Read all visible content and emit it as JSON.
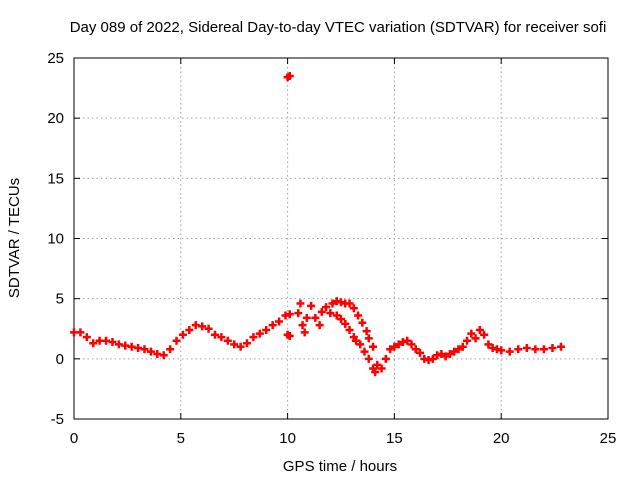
{
  "chart_data": {
    "type": "scatter",
    "title": "Day 089 of 2022, Sidereal Day-to-day VTEC variation (SDTVAR) for receiver sofi",
    "xlabel": "GPS time / hours",
    "ylabel": "SDTVAR / TECUs",
    "xlim": [
      0,
      25
    ],
    "ylim": [
      -5,
      25
    ],
    "xticks": [
      0,
      5,
      10,
      15,
      20,
      25
    ],
    "yticks": [
      -5,
      0,
      5,
      10,
      15,
      20,
      25
    ],
    "grid": true,
    "marker": "plus",
    "series": [
      {
        "name": "SDTVAR",
        "color": "#ff0000",
        "points": [
          [
            0.0,
            2.2
          ],
          [
            0.3,
            2.2
          ],
          [
            0.6,
            1.8
          ],
          [
            0.9,
            1.3
          ],
          [
            1.2,
            1.5
          ],
          [
            1.5,
            1.5
          ],
          [
            1.8,
            1.4
          ],
          [
            2.1,
            1.2
          ],
          [
            2.4,
            1.1
          ],
          [
            2.7,
            1.0
          ],
          [
            3.0,
            0.9
          ],
          [
            3.3,
            0.8
          ],
          [
            3.6,
            0.6
          ],
          [
            3.9,
            0.4
          ],
          [
            4.2,
            0.3
          ],
          [
            4.5,
            0.8
          ],
          [
            4.8,
            1.5
          ],
          [
            5.1,
            2.0
          ],
          [
            5.4,
            2.4
          ],
          [
            5.7,
            2.8
          ],
          [
            6.0,
            2.7
          ],
          [
            6.3,
            2.5
          ],
          [
            6.6,
            2.0
          ],
          [
            6.9,
            1.8
          ],
          [
            7.2,
            1.5
          ],
          [
            7.5,
            1.2
          ],
          [
            7.8,
            1.0
          ],
          [
            8.1,
            1.3
          ],
          [
            8.4,
            1.8
          ],
          [
            8.7,
            2.1
          ],
          [
            9.0,
            2.4
          ],
          [
            9.3,
            2.8
          ],
          [
            9.6,
            3.1
          ],
          [
            9.9,
            3.6
          ],
          [
            10.1,
            3.7
          ],
          [
            10.0,
            2.0
          ],
          [
            10.1,
            1.9
          ],
          [
            10.0,
            23.4
          ],
          [
            10.1,
            23.5
          ],
          [
            10.5,
            3.8
          ],
          [
            10.6,
            4.6
          ],
          [
            10.7,
            2.8
          ],
          [
            10.8,
            2.2
          ],
          [
            10.9,
            3.4
          ],
          [
            11.1,
            4.4
          ],
          [
            11.3,
            3.4
          ],
          [
            11.5,
            2.8
          ],
          [
            11.6,
            3.9
          ],
          [
            11.8,
            4.3
          ],
          [
            12.0,
            3.8
          ],
          [
            12.1,
            4.6
          ],
          [
            12.3,
            4.8
          ],
          [
            12.5,
            4.7
          ],
          [
            12.7,
            4.6
          ],
          [
            12.9,
            4.6
          ],
          [
            13.1,
            4.2
          ],
          [
            13.3,
            3.6
          ],
          [
            13.5,
            3.0
          ],
          [
            13.7,
            2.3
          ],
          [
            13.8,
            1.7
          ],
          [
            14.0,
            1.0
          ],
          [
            14.2,
            -0.5
          ],
          [
            14.0,
            -0.8
          ],
          [
            14.1,
            -1.1
          ],
          [
            13.8,
            0.0
          ],
          [
            13.6,
            0.6
          ],
          [
            13.4,
            1.2
          ],
          [
            13.2,
            1.5
          ],
          [
            13.1,
            1.8
          ],
          [
            12.9,
            2.4
          ],
          [
            12.7,
            2.9
          ],
          [
            12.5,
            3.3
          ],
          [
            12.3,
            3.6
          ],
          [
            14.4,
            -0.8
          ],
          [
            14.6,
            0.0
          ],
          [
            14.8,
            0.8
          ],
          [
            15.0,
            1.0
          ],
          [
            15.2,
            1.2
          ],
          [
            15.4,
            1.4
          ],
          [
            15.6,
            1.5
          ],
          [
            15.8,
            1.2
          ],
          [
            16.0,
            0.8
          ],
          [
            16.2,
            0.5
          ],
          [
            16.4,
            0.0
          ],
          [
            16.6,
            -0.1
          ],
          [
            16.8,
            0.0
          ],
          [
            17.0,
            0.3
          ],
          [
            17.2,
            0.4
          ],
          [
            17.4,
            0.2
          ],
          [
            17.6,
            0.4
          ],
          [
            17.8,
            0.6
          ],
          [
            18.0,
            0.8
          ],
          [
            18.2,
            1.0
          ],
          [
            18.4,
            1.5
          ],
          [
            18.6,
            2.1
          ],
          [
            18.8,
            1.7
          ],
          [
            19.0,
            2.4
          ],
          [
            19.2,
            2.0
          ],
          [
            19.4,
            1.2
          ],
          [
            19.6,
            0.9
          ],
          [
            19.8,
            0.8
          ],
          [
            20.0,
            0.7
          ],
          [
            20.4,
            0.6
          ],
          [
            20.8,
            0.8
          ],
          [
            21.2,
            0.9
          ],
          [
            21.6,
            0.8
          ],
          [
            22.0,
            0.8
          ],
          [
            22.4,
            0.9
          ],
          [
            22.8,
            1.0
          ]
        ]
      }
    ]
  }
}
